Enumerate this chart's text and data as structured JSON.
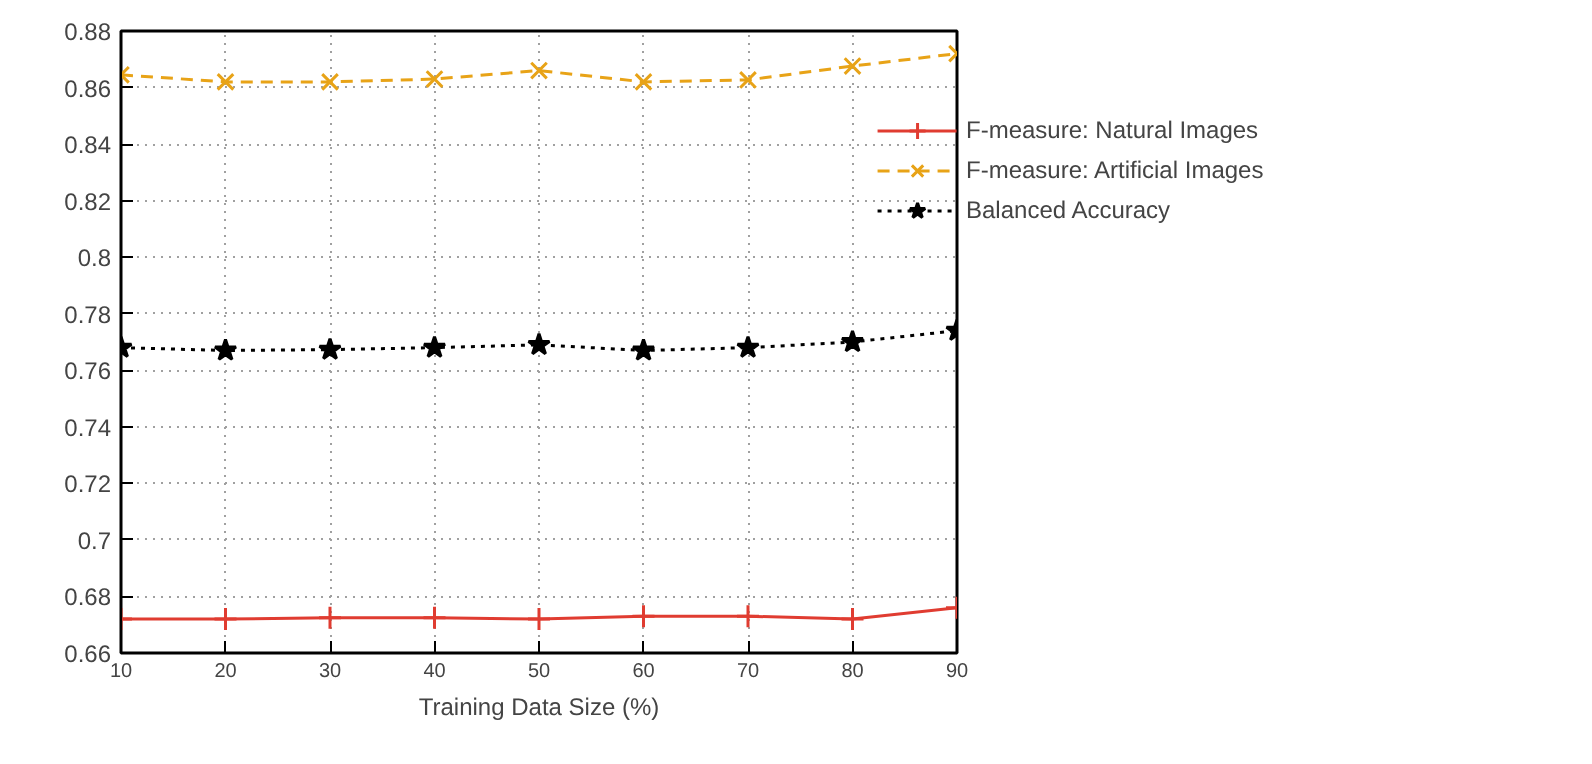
{
  "chart_data": {
    "type": "line",
    "xlabel": "Training Data Size (%)",
    "x": [
      10,
      20,
      30,
      40,
      50,
      60,
      70,
      80,
      90
    ],
    "series": [
      {
        "name": "F-measure: Natural Images",
        "color": "#e03c31",
        "line_style": "solid",
        "marker": "cross",
        "values": [
          0.672,
          0.672,
          0.6725,
          0.6725,
          0.672,
          0.673,
          0.673,
          0.672,
          0.676
        ]
      },
      {
        "name": "F-measure: Artificial Images",
        "color": "#e8a317",
        "line_style": "dashed",
        "marker": "x",
        "values": [
          0.8645,
          0.862,
          0.862,
          0.863,
          0.866,
          0.862,
          0.8627,
          0.8676,
          0.872
        ]
      },
      {
        "name": "Balanced Accuracy",
        "color": "#000000",
        "line_style": "dotted",
        "marker": "star",
        "values": [
          0.768,
          0.767,
          0.7673,
          0.768,
          0.769,
          0.767,
          0.768,
          0.77,
          0.774
        ]
      }
    ],
    "xlim": [
      10,
      90
    ],
    "xticks": [
      10,
      20,
      30,
      40,
      50,
      60,
      70,
      80,
      90
    ],
    "ylim": [
      0.66,
      0.88
    ],
    "yticks": [
      0.66,
      0.68,
      0.7,
      0.72,
      0.74,
      0.76,
      0.78,
      0.8,
      0.82,
      0.84,
      0.86,
      0.88
    ],
    "grid": true,
    "legend": "top right"
  }
}
